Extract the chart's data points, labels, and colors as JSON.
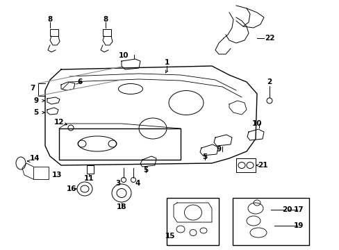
{
  "bg_color": "#ffffff",
  "line_color": "#000000",
  "gray_color": "#888888",
  "label_color": "#000000",
  "lw_main": 1.0,
  "lw_thin": 0.7,
  "lw_gray": 0.8,
  "fs": 7.5
}
